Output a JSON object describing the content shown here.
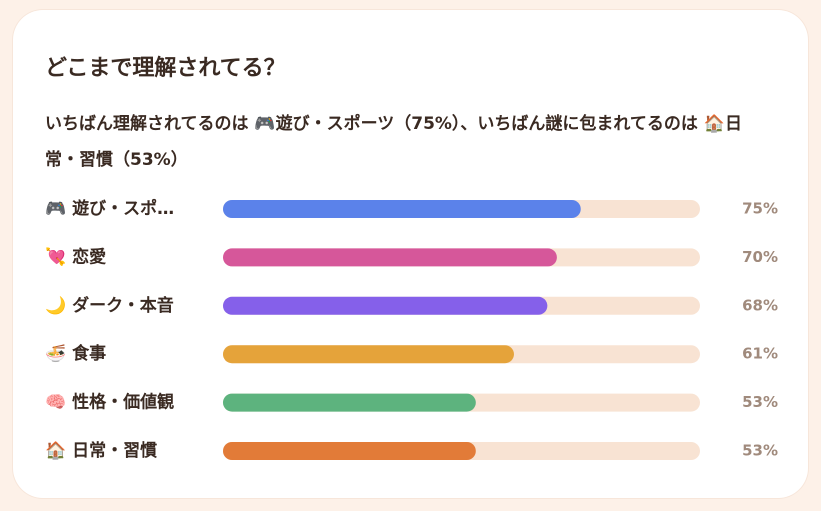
{
  "chart_data": {
    "type": "bar",
    "title": "どこまで理解されてる？",
    "subtitle": "いちばん理解されてるのは 🎮遊び・スポーツ（75%）、いちばん謎に包まれてるのは 🏠日常・習慣（53%）",
    "categories": [
      "🎮 遊び・スポ…",
      "💘 恋愛",
      "🌙 ダーク・本音",
      "🍜 食事",
      "🧠 性格・価値観",
      "🏠 日常・習慣"
    ],
    "values": [
      75,
      70,
      68,
      61,
      53,
      53
    ],
    "value_labels": [
      "75%",
      "70%",
      "68%",
      "61%",
      "53%",
      "53%"
    ],
    "colors": [
      "#5b82ea",
      "#d6579a",
      "#8560ea",
      "#e5a33a",
      "#5db37e",
      "#e27b38"
    ],
    "xlim": [
      0,
      100
    ]
  }
}
